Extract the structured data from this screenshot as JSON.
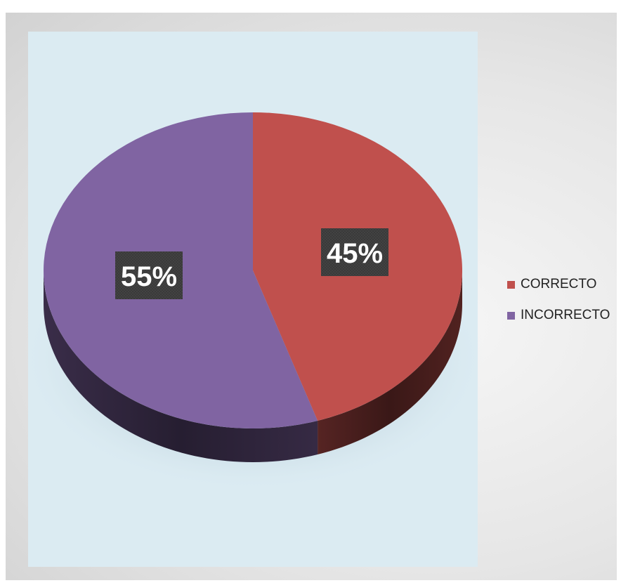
{
  "chart_data": {
    "type": "pie",
    "title": "",
    "categories": [
      "CORRECTO",
      "INCORRECTO"
    ],
    "values": [
      45,
      55
    ],
    "data_labels": [
      "45%",
      "55%"
    ],
    "legend_position": "right",
    "colors": {
      "CORRECTO": "#c0504d",
      "INCORRECTO": "#8064a2",
      "label_box": "#3a3a3a",
      "label_text": "#ffffff"
    }
  }
}
